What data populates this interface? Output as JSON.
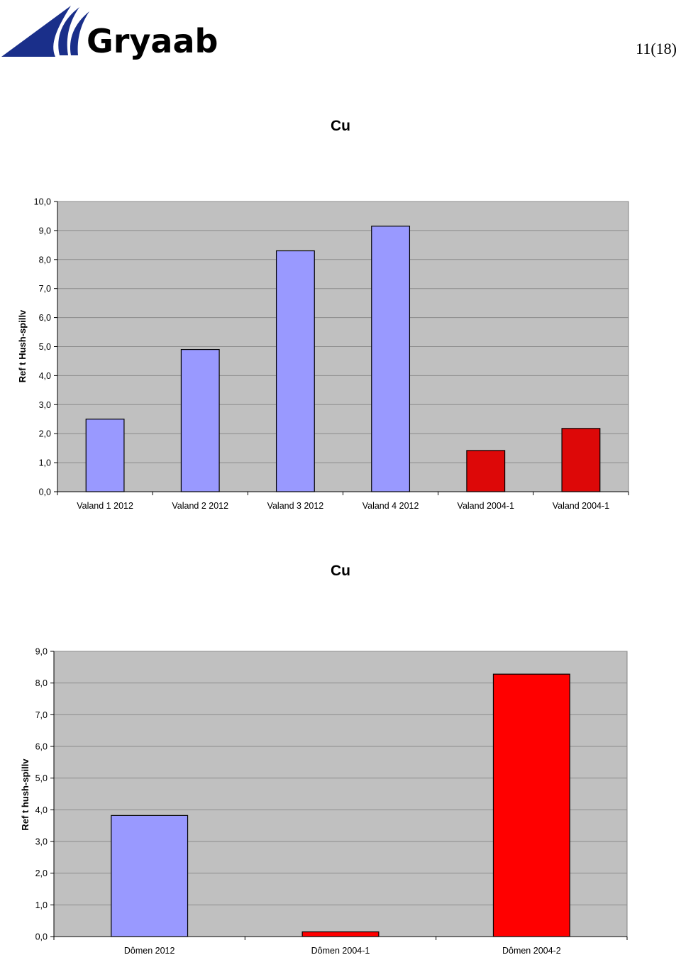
{
  "header": {
    "logo_text": "Gryaab",
    "page_number": "11(18)",
    "colors": {
      "logo_blue": "#1a2f8a"
    }
  },
  "chart_data": [
    {
      "type": "bar",
      "title": "Cu",
      "ylabel": "Ref t Hush-spillv",
      "categories": [
        "Valand 1  2012",
        "Valand 2  2012",
        "Valand 3  2012",
        "Valand 4  2012",
        "Valand 2004-1",
        "Valand 2004-1"
      ],
      "values": [
        2.5,
        4.9,
        8.3,
        9.15,
        1.42,
        2.18
      ],
      "bar_colors": [
        "#9999ff",
        "#9999ff",
        "#9999ff",
        "#9999ff",
        "#dd0808",
        "#dd0808"
      ],
      "ylim": [
        0,
        10
      ],
      "yticks": [
        "0,0",
        "1,0",
        "2,0",
        "3,0",
        "4,0",
        "5,0",
        "6,0",
        "7,0",
        "8,0",
        "9,0",
        "10,0"
      ],
      "grid": true,
      "legend": "none",
      "plot_background": "#c0c0c0"
    },
    {
      "type": "bar",
      "title": "Cu",
      "ylabel": "Ref t hush-spillv",
      "categories": [
        "Dômen 2012",
        "Dômen 2004-1",
        "Dômen 2004-2"
      ],
      "values": [
        3.82,
        0.15,
        8.28
      ],
      "bar_colors": [
        "#9999ff",
        "#ff0000",
        "#ff0000"
      ],
      "ylim": [
        0,
        9
      ],
      "yticks": [
        "0,0",
        "1,0",
        "2,0",
        "3,0",
        "4,0",
        "5,0",
        "6,0",
        "7,0",
        "8,0",
        "9,0"
      ],
      "grid": true,
      "legend": "none",
      "plot_background": "#c0c0c0"
    }
  ]
}
